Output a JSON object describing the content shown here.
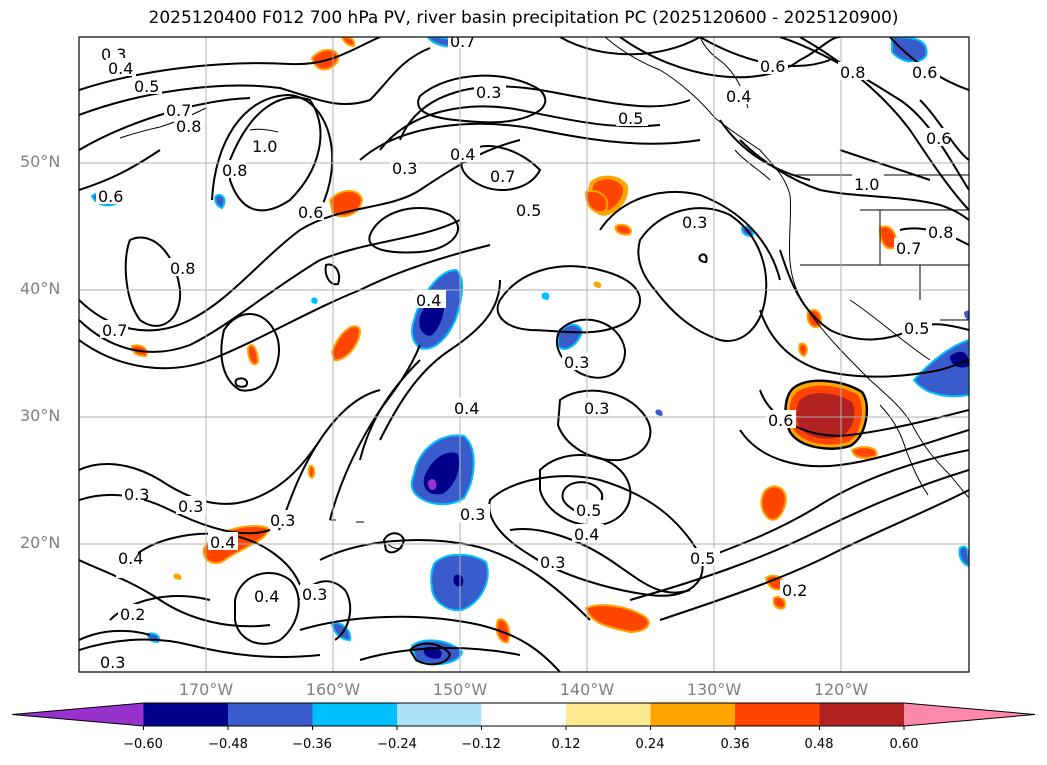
{
  "title": "2025120400 F012 700 hPa PV, river basin precipitation PC (2025120600 - 2025120900)",
  "lat_labels": [
    "50°N",
    "40°N",
    "30°N",
    "20°N"
  ],
  "lon_labels": [
    "170°W",
    "160°W",
    "150°W",
    "140°W",
    "130°W",
    "120°W"
  ],
  "colorbar": {
    "colors": [
      "#9932CC",
      "#00008B",
      "#3A5BCC",
      "#00BFFF",
      "#ADE1FA",
      "#FFFFFF",
      "#FFE98E",
      "#FFA500",
      "#FF4500",
      "#B22222",
      "#FF88AA"
    ],
    "ticks": [
      "−0.60",
      "−0.48",
      "−0.36",
      "−0.24",
      "−0.12",
      "0.12",
      "0.24",
      "0.36",
      "0.48",
      "0.60"
    ]
  },
  "contour_labels": [
    "0.3",
    "0.4",
    "0.5",
    "0.6",
    "0.7",
    "0.8",
    "1.0",
    "0.2"
  ]
}
